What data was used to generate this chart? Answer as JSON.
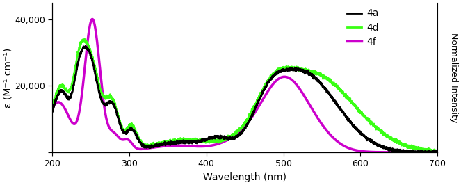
{
  "xlim": [
    200,
    700
  ],
  "ylim": [
    0,
    45000
  ],
  "xlabel": "Wavelength (nm)",
  "ylabel": "ε (M⁻¹ cm⁻¹)",
  "ylabel_right": "Normalized Intensity",
  "yticks": [
    0,
    20000,
    40000
  ],
  "ytick_labels": [
    "",
    "20,000",
    "40,000"
  ],
  "xticks": [
    200,
    300,
    400,
    500,
    600,
    700
  ],
  "legend_labels": [
    "4a",
    "4d",
    "4f"
  ],
  "colors": {
    "4a": "#000000",
    "4d": "#39ff14",
    "4f": "#cc00cc"
  },
  "linewidths": {
    "4a": 2.0,
    "4d": 2.0,
    "4f": 2.5
  },
  "background": "#ffffff"
}
